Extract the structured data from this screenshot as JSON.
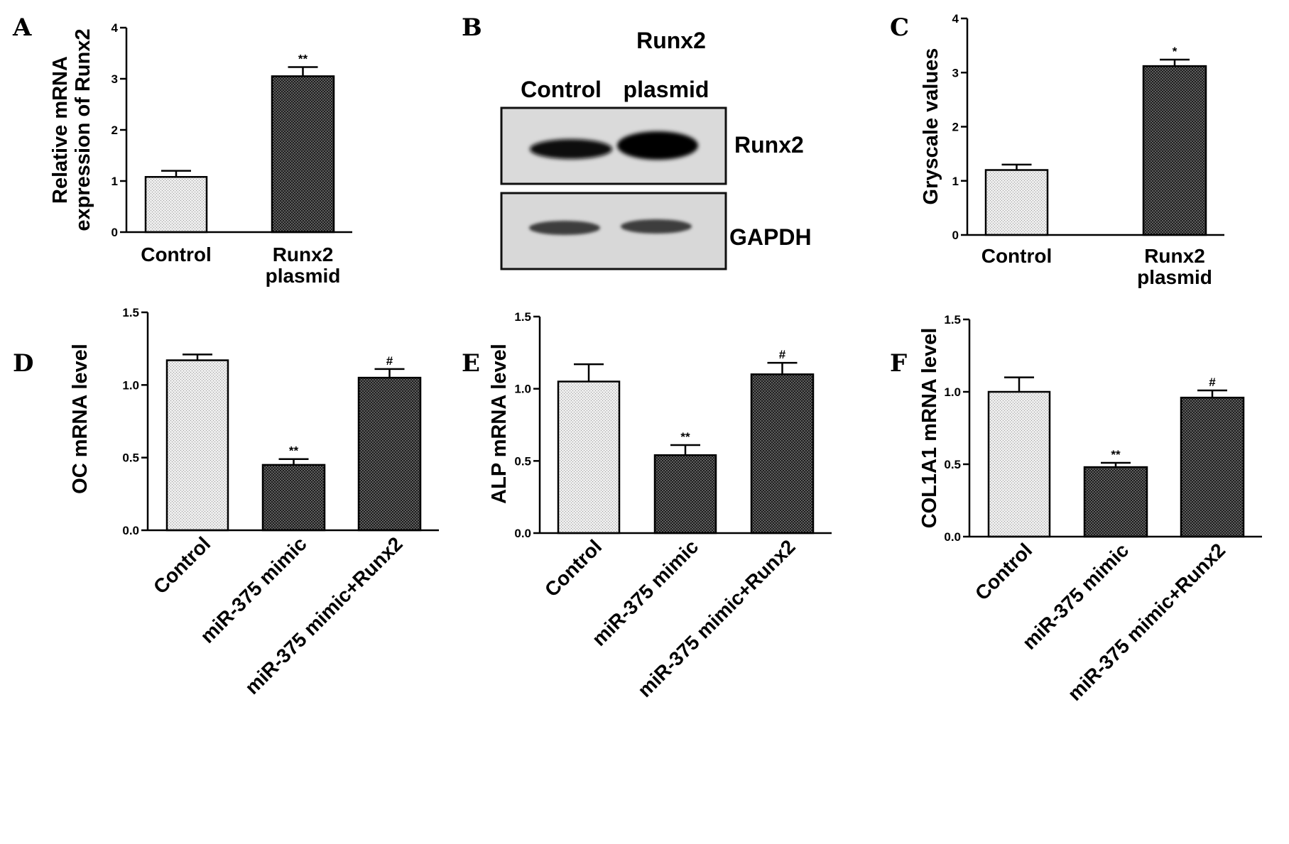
{
  "panels": {
    "A": "A",
    "B": "B",
    "C": "C",
    "D": "D",
    "E": "E",
    "F": "F"
  },
  "blot": {
    "title": "Runx2",
    "lane_labels": [
      "Control",
      "plasmid"
    ],
    "band_labels": [
      "Runx2",
      "GAPDH"
    ]
  },
  "chart_data": [
    {
      "panel": "A",
      "type": "bar",
      "ylabel": [
        "Relative mRNA",
        "expression of Runx2"
      ],
      "categories": [
        [
          "Control"
        ],
        [
          "Runx2",
          "plasmid"
        ]
      ],
      "values": [
        1.08,
        3.05
      ],
      "errors": [
        0.12,
        0.18
      ],
      "significance": [
        "",
        "**"
      ],
      "ylim": [
        0,
        4
      ],
      "yticks": [
        0,
        1,
        2,
        3,
        4
      ],
      "yticklabels": [
        "0",
        "1",
        "2",
        "3",
        "4"
      ],
      "fills": [
        "light",
        "dark"
      ]
    },
    {
      "panel": "C",
      "type": "bar",
      "ylabel": [
        "Gryscale values"
      ],
      "categories": [
        [
          "Control"
        ],
        [
          "Runx2",
          "plasmid"
        ]
      ],
      "values": [
        1.2,
        3.12
      ],
      "errors": [
        0.1,
        0.12
      ],
      "significance": [
        "",
        "*"
      ],
      "ylim": [
        0,
        4
      ],
      "yticks": [
        0,
        1,
        2,
        3,
        4
      ],
      "yticklabels": [
        "0",
        "1",
        "2",
        "3",
        "4"
      ],
      "fills": [
        "light",
        "dark"
      ]
    },
    {
      "panel": "D",
      "type": "bar",
      "ylabel": [
        "OC mRNA level"
      ],
      "categories": [
        "Control",
        "miR-375 mimic",
        "miR-375 mimic+Runx2"
      ],
      "values": [
        1.17,
        0.45,
        1.05
      ],
      "errors": [
        0.04,
        0.04,
        0.06
      ],
      "significance": [
        "",
        "**",
        "#"
      ],
      "ylim": [
        0,
        1.5
      ],
      "yticks": [
        0,
        0.5,
        1.0,
        1.5
      ],
      "yticklabels": [
        "0.0",
        "0.5",
        "1.0",
        "1.5"
      ],
      "fills": [
        "light",
        "dark",
        "dark"
      ]
    },
    {
      "panel": "E",
      "type": "bar",
      "ylabel": [
        "ALP mRNA level"
      ],
      "categories": [
        "Control",
        "miR-375 mimic",
        "miR-375 mimic+Runx2"
      ],
      "values": [
        1.05,
        0.54,
        1.1
      ],
      "errors": [
        0.12,
        0.07,
        0.08
      ],
      "significance": [
        "",
        "**",
        "#"
      ],
      "ylim": [
        0,
        1.5
      ],
      "yticks": [
        0,
        0.5,
        1.0,
        1.5
      ],
      "yticklabels": [
        "0.0",
        "0.5",
        "1.0",
        "1.5"
      ],
      "fills": [
        "light",
        "dark",
        "dark"
      ]
    },
    {
      "panel": "F",
      "type": "bar",
      "ylabel": [
        "COL1A1 mRNA level"
      ],
      "categories": [
        "Control",
        "miR-375 mimic",
        "miR-375 mimic+Runx2"
      ],
      "values": [
        1.0,
        0.48,
        0.96
      ],
      "errors": [
        0.1,
        0.03,
        0.05
      ],
      "significance": [
        "",
        "**",
        "#"
      ],
      "ylim": [
        0,
        1.5
      ],
      "yticks": [
        0,
        0.5,
        1.0,
        1.5
      ],
      "yticklabels": [
        "0.0",
        "0.5",
        "1.0",
        "1.5"
      ],
      "fills": [
        "light",
        "dark",
        "dark"
      ]
    }
  ]
}
